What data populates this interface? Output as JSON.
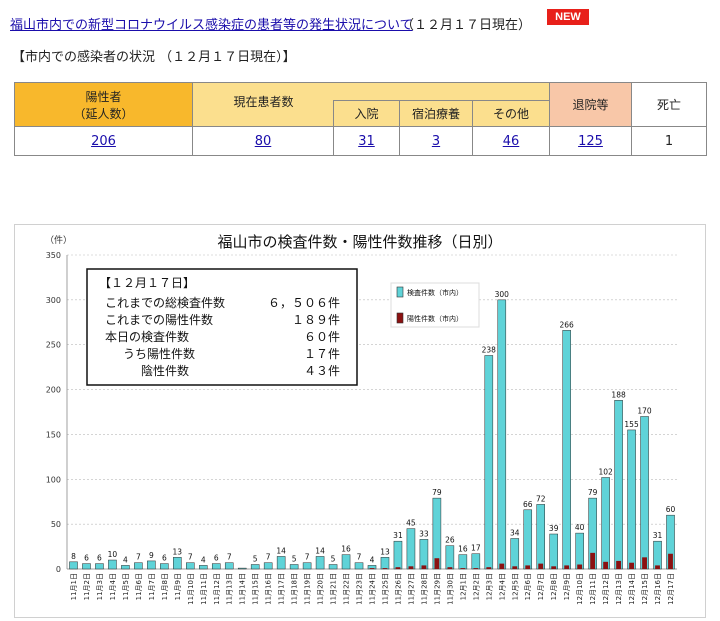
{
  "header": {
    "link_text": "福山市内での新型コロナウイルス感染症の患者等の発生状況について",
    "date_text": "（１２月１７日現在）",
    "badge": "NEW"
  },
  "subhead": "【市内での感染者の状況 （１２月１７日現在）】",
  "stats_table": {
    "positive_label_1": "陽性者",
    "positive_label_2": "（延人数）",
    "current_label": "現在患者数",
    "hospital_label": "入院",
    "hotel_label": "宿泊療養",
    "other_label": "その他",
    "recovered_label": "退院等",
    "death_label": "死亡",
    "positive_value": "206",
    "current_value": "80",
    "hospital_value": "31",
    "hotel_value": "3",
    "other_value": "46",
    "recovered_value": "125",
    "death_value": "1"
  },
  "colors": {
    "tests_bar": "#5fd3d8",
    "positive_bar": "#8b1111",
    "link": "#1a0dab",
    "badge": "#e8201a"
  },
  "chart_data": {
    "type": "bar",
    "title": "福山市の検査件数・陽性件数推移（日別）",
    "ylabel": "（件）",
    "ylim": [
      0,
      350
    ],
    "yticks": [
      0,
      50,
      100,
      150,
      200,
      250,
      300,
      350
    ],
    "grid": true,
    "legend_position": "top-center-right",
    "categories": [
      "11月1日",
      "11月2日",
      "11月3日",
      "11月4日",
      "11月5日",
      "11月6日",
      "11月7日",
      "11月8日",
      "11月9日",
      "11月10日",
      "11月11日",
      "11月12日",
      "11月13日",
      "11月14日",
      "11月15日",
      "11月16日",
      "11月17日",
      "11月18日",
      "11月19日",
      "11月20日",
      "11月21日",
      "11月22日",
      "11月23日",
      "11月24日",
      "11月25日",
      "11月26日",
      "11月27日",
      "11月28日",
      "11月29日",
      "11月30日",
      "12月1日",
      "12月2日",
      "12月3日",
      "12月4日",
      "12月5日",
      "12月6日",
      "12月7日",
      "12月8日",
      "12月9日",
      "12月10日",
      "12月11日",
      "12月12日",
      "12月13日",
      "12月14日",
      "12月15日",
      "12月16日",
      "12月17日"
    ],
    "tests_labels": [
      "8",
      "6",
      "6",
      "10",
      "4",
      "7",
      "9",
      "6",
      "13",
      "7",
      "4",
      "6",
      "7",
      "",
      "5",
      "7",
      "14",
      "5",
      "7",
      "14",
      "5",
      "16",
      "7",
      "4",
      "13",
      "31",
      "45",
      "33",
      "79",
      "26",
      "16",
      "17",
      "238",
      "300",
      "34",
      "66",
      "72",
      "39",
      "266",
      "40",
      "79",
      "102",
      "188",
      "155",
      "170",
      "31",
      "60"
    ],
    "series": [
      {
        "name": "検査件数（市内）",
        "values": [
          8,
          6,
          6,
          10,
          4,
          7,
          9,
          6,
          13,
          7,
          4,
          6,
          7,
          1,
          5,
          7,
          14,
          5,
          7,
          14,
          5,
          16,
          7,
          4,
          13,
          31,
          45,
          33,
          79,
          26,
          16,
          17,
          238,
          300,
          34,
          66,
          72,
          39,
          266,
          40,
          79,
          102,
          188,
          155,
          170,
          31,
          60
        ]
      },
      {
        "name": "陽性件数（市内）",
        "values": [
          0,
          0,
          0,
          0,
          0,
          0,
          0,
          0,
          0,
          0,
          0,
          0,
          0,
          0,
          0,
          0,
          0,
          0,
          0,
          0,
          0,
          0,
          0,
          1,
          1,
          2,
          3,
          4,
          12,
          2,
          1,
          1,
          2,
          6,
          3,
          4,
          6,
          3,
          4,
          5,
          18,
          8,
          9,
          7,
          13,
          4,
          17
        ]
      }
    ],
    "summary_box": {
      "heading": "【１２月１７日】",
      "rows": [
        {
          "label": "これまでの総検査件数",
          "value": "６，５０６件"
        },
        {
          "label": "これまでの陽性件数",
          "value": "１８９件"
        },
        {
          "label": "本日の検査件数",
          "value": "６０件"
        },
        {
          "label": "うち陽性件数",
          "value": "１７件"
        },
        {
          "label": "陰性件数",
          "value": "４３件"
        }
      ]
    }
  }
}
